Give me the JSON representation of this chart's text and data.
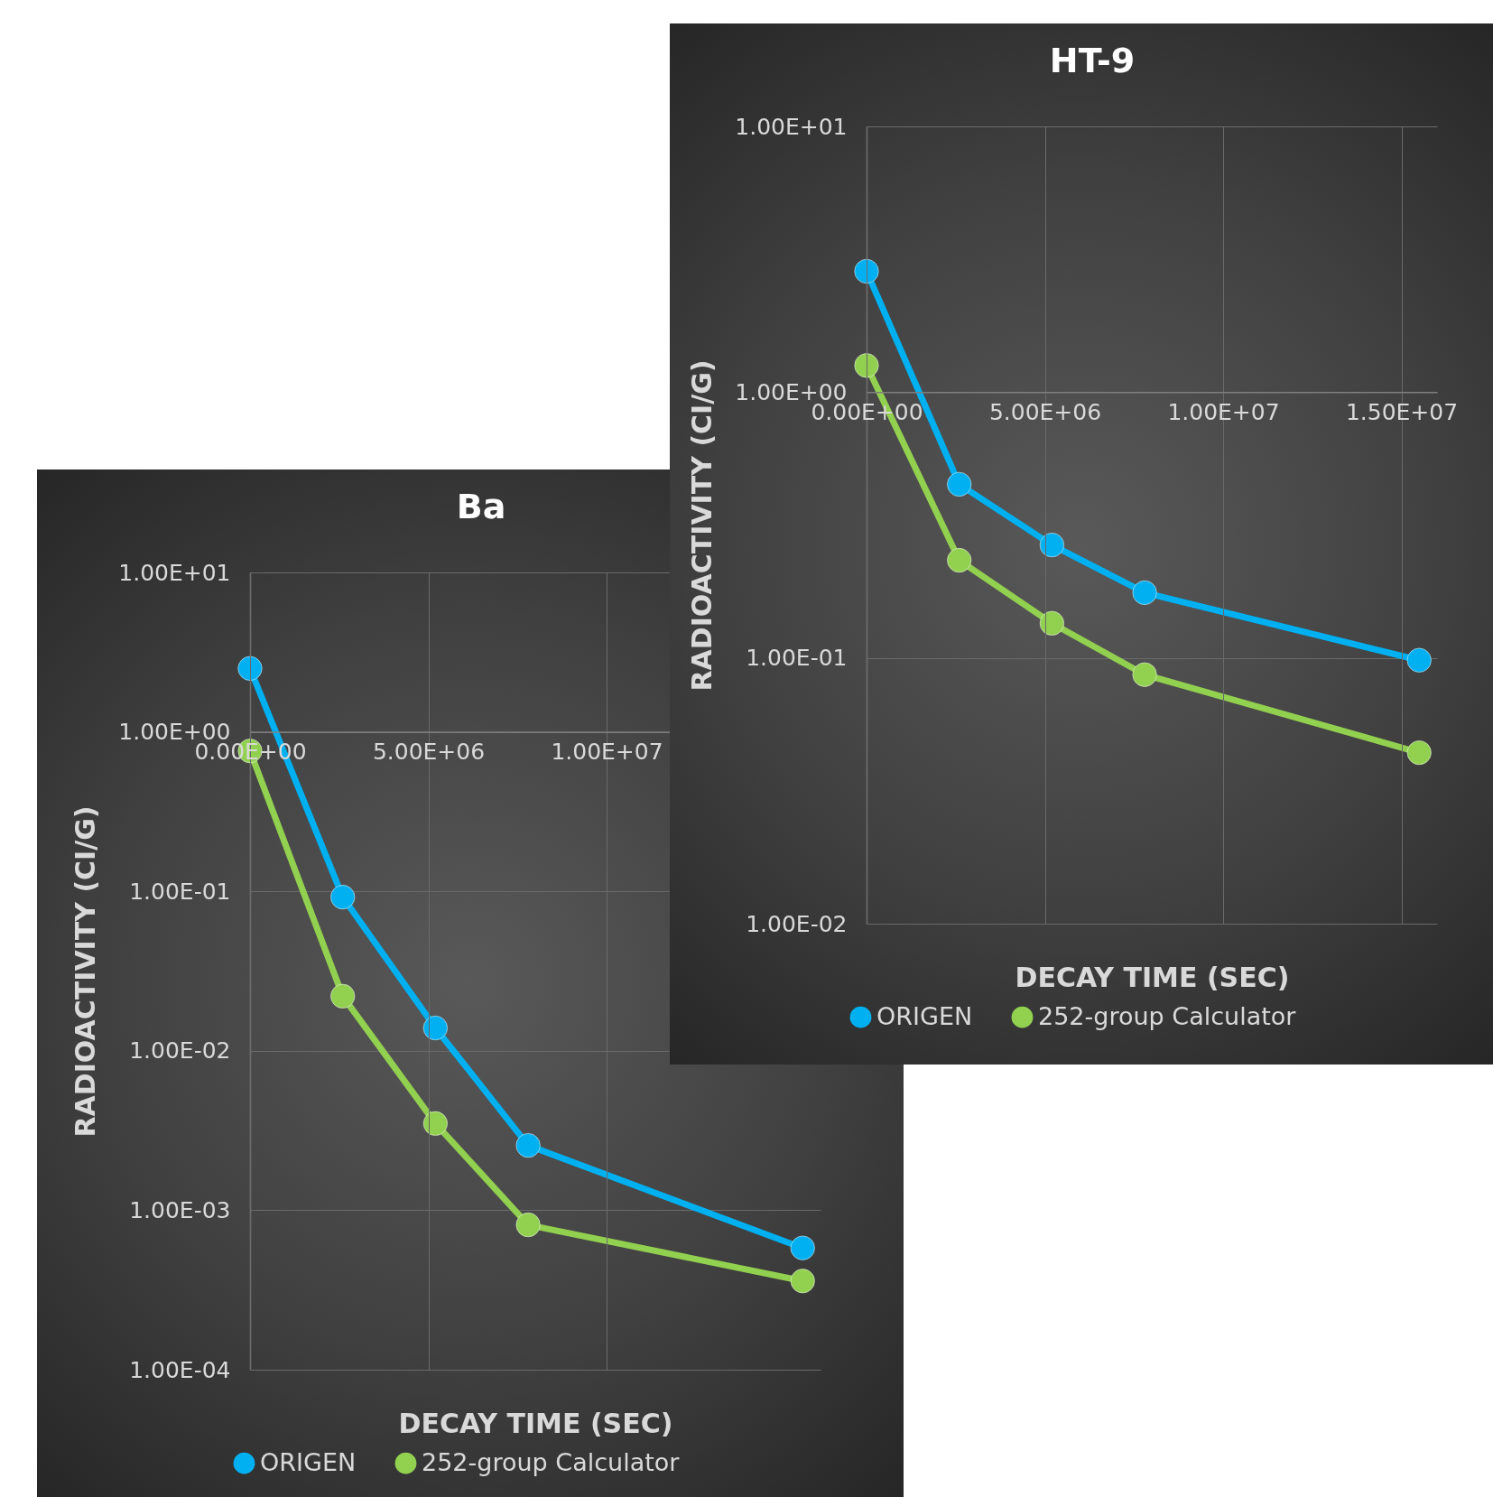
{
  "chart_data": [
    {
      "type": "line",
      "title": "HT-9",
      "xlabel": "DECAY TIME (SEC)",
      "ylabel": "RADIOACTIVITY (CI/G)",
      "x": [
        0,
        2600000,
        5200000,
        7800000,
        15500000
      ],
      "series": [
        {
          "name": "ORIGEN",
          "color": "#00b0f0",
          "values": [
            2.85,
            0.45,
            0.266,
            0.176,
            0.098
          ]
        },
        {
          "name": "252-group Calculator",
          "color": "#92d050",
          "values": [
            1.26,
            0.233,
            0.135,
            0.0865,
            0.044
          ]
        }
      ],
      "xlim": [
        0,
        16000000
      ],
      "xticks": [
        {
          "value": 0,
          "label": "0.00E+00"
        },
        {
          "value": 5000000,
          "label": "5.00E+06"
        },
        {
          "value": 10000000,
          "label": "1.00E+07"
        },
        {
          "value": 15000000,
          "label": "1.50E+07"
        }
      ],
      "ylim": [
        0.01,
        10
      ],
      "yticks": [
        {
          "value": 0.01,
          "label": "1.00E-02"
        },
        {
          "value": 0.1,
          "label": "1.00E-01"
        },
        {
          "value": 1,
          "label": "1.00E+00"
        },
        {
          "value": 10,
          "label": "1.00E+01"
        }
      ],
      "log": "y",
      "grid": true,
      "legend": "bottom",
      "marker": "circle"
    },
    {
      "type": "line",
      "title": "Ba",
      "xlabel": "DECAY TIME (SEC)",
      "ylabel": "RADIOACTIVITY (CI/G)",
      "x": [
        0,
        2600000,
        5200000,
        7800000,
        15500000
      ],
      "series": [
        {
          "name": "ORIGEN",
          "color": "#00b0f0",
          "values": [
            2.5,
            0.092,
            0.0139,
            0.00255,
            0.00058
          ]
        },
        {
          "name": "252-group Calculator",
          "color": "#92d050",
          "values": [
            0.76,
            0.022,
            0.0035,
            0.00081,
            0.00036
          ]
        }
      ],
      "xlim": [
        0,
        16000000
      ],
      "xticks": [
        {
          "value": 0,
          "label": "0.00E+00"
        },
        {
          "value": 5000000,
          "label": "5.00E+06"
        },
        {
          "value": 10000000,
          "label": "1.00E+07"
        }
      ],
      "ylim": [
        0.0001,
        10
      ],
      "yticks": [
        {
          "value": 0.0001,
          "label": "1.00E-04"
        },
        {
          "value": 0.001,
          "label": "1.00E-03"
        },
        {
          "value": 0.01,
          "label": "1.00E-02"
        },
        {
          "value": 0.1,
          "label": "1.00E-01"
        },
        {
          "value": 1,
          "label": "1.00E+00"
        },
        {
          "value": 10,
          "label": "1.00E+01"
        }
      ],
      "log": "y",
      "grid": true,
      "legend": "bottom",
      "marker": "circle"
    }
  ]
}
